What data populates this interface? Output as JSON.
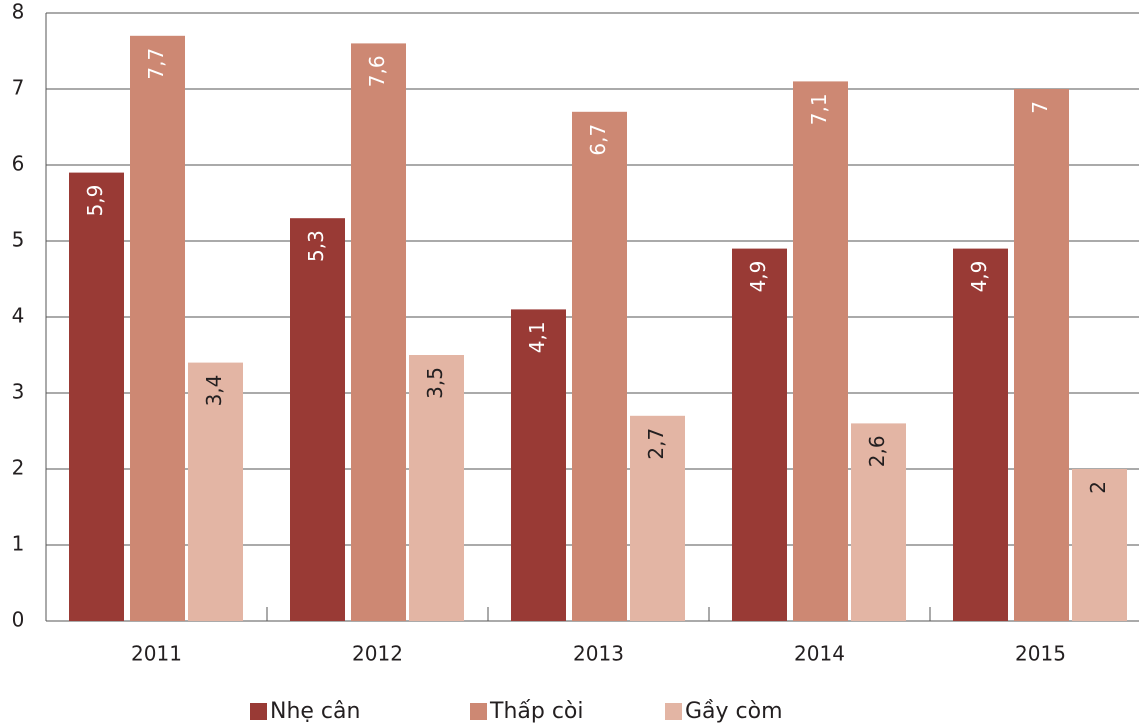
{
  "chart_data": {
    "type": "bar",
    "categories": [
      "2011",
      "2012",
      "2013",
      "2014",
      "2015"
    ],
    "series": [
      {
        "name": "Nhẹ cân",
        "color": "#993a35",
        "values": [
          5.9,
          5.3,
          4.1,
          4.9,
          4.9
        ],
        "value_labels": [
          "5,9",
          "5,3",
          "4,1",
          "4,9",
          "4,9"
        ]
      },
      {
        "name": "Thấp còi",
        "color": "#cd8873",
        "values": [
          7.7,
          7.6,
          6.7,
          7.1,
          7
        ],
        "value_labels": [
          "7,7",
          "7,6",
          "6,7",
          "7,1",
          "7"
        ]
      },
      {
        "name": "Gầy còm",
        "color": "#e3b5a4",
        "values": [
          3.4,
          3.5,
          2.7,
          2.6,
          2
        ],
        "value_labels": [
          "3,4",
          "3,5",
          "2,7",
          "2,6",
          "2"
        ]
      }
    ],
    "ylim": [
      0,
      8
    ],
    "yticks": [
      0,
      1,
      2,
      3,
      4,
      5,
      6,
      7,
      8
    ],
    "grid": true,
    "legend": "bottom"
  }
}
